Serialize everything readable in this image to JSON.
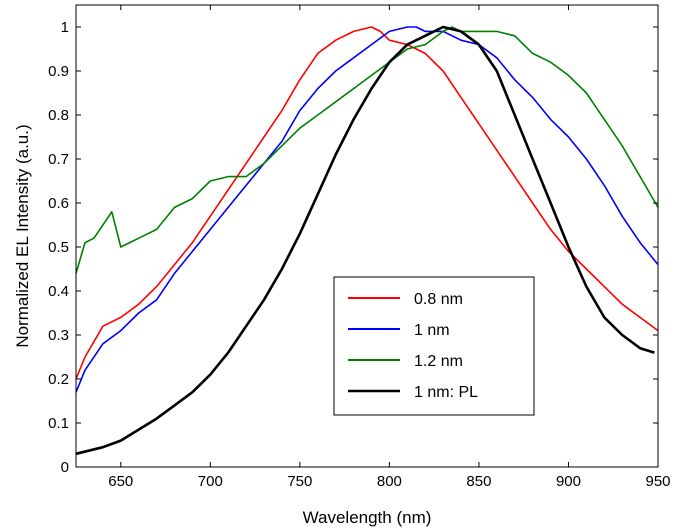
{
  "chart_data": {
    "type": "line",
    "title": "",
    "xlabel": "Wavelength (nm)",
    "ylabel": "Normalized EL Intensity (a.u.)",
    "xlim": [
      625,
      950
    ],
    "ylim": [
      0,
      1.05
    ],
    "xticks": [
      "650",
      "700",
      "750",
      "800",
      "850",
      "900",
      "950"
    ],
    "yticks": [
      "0",
      "0.1",
      "0.2",
      "0.3",
      "0.4",
      "0.5",
      "0.6",
      "0.7",
      "0.8",
      "0.9",
      "1"
    ],
    "grid": false,
    "legend_position": "lower-right",
    "series": [
      {
        "name": "0.8 nm",
        "color": "#ff0000",
        "x": [
          625,
          630,
          640,
          650,
          660,
          670,
          680,
          690,
          700,
          710,
          720,
          730,
          740,
          750,
          760,
          770,
          780,
          790,
          795,
          800,
          810,
          820,
          830,
          840,
          850,
          860,
          870,
          880,
          890,
          900,
          910,
          920,
          930,
          940,
          950
        ],
        "y": [
          0.2,
          0.25,
          0.32,
          0.34,
          0.37,
          0.41,
          0.46,
          0.51,
          0.57,
          0.63,
          0.69,
          0.75,
          0.81,
          0.88,
          0.94,
          0.97,
          0.99,
          1.0,
          0.99,
          0.97,
          0.96,
          0.94,
          0.9,
          0.84,
          0.78,
          0.72,
          0.66,
          0.6,
          0.54,
          0.49,
          0.45,
          0.41,
          0.37,
          0.34,
          0.31
        ]
      },
      {
        "name": "1 nm",
        "color": "#0000ff",
        "x": [
          625,
          630,
          640,
          650,
          660,
          670,
          680,
          690,
          700,
          710,
          720,
          730,
          740,
          750,
          760,
          770,
          780,
          790,
          800,
          810,
          815,
          820,
          830,
          840,
          850,
          860,
          870,
          880,
          890,
          900,
          910,
          920,
          930,
          940,
          950
        ],
        "y": [
          0.17,
          0.22,
          0.28,
          0.31,
          0.35,
          0.38,
          0.44,
          0.49,
          0.54,
          0.59,
          0.64,
          0.69,
          0.74,
          0.81,
          0.86,
          0.9,
          0.93,
          0.96,
          0.99,
          1.0,
          1.0,
          0.99,
          0.99,
          0.97,
          0.96,
          0.93,
          0.88,
          0.84,
          0.79,
          0.75,
          0.7,
          0.64,
          0.57,
          0.51,
          0.46
        ]
      },
      {
        "name": "1.2 nm",
        "color": "#008000",
        "x": [
          625,
          630,
          635,
          640,
          645,
          650,
          655,
          660,
          665,
          670,
          680,
          690,
          700,
          710,
          720,
          730,
          740,
          750,
          760,
          770,
          780,
          790,
          800,
          810,
          820,
          830,
          835,
          840,
          850,
          860,
          870,
          880,
          890,
          900,
          910,
          920,
          930,
          940,
          950
        ],
        "y": [
          0.44,
          0.51,
          0.52,
          0.55,
          0.58,
          0.5,
          0.51,
          0.52,
          0.53,
          0.54,
          0.59,
          0.61,
          0.65,
          0.66,
          0.66,
          0.69,
          0.73,
          0.77,
          0.8,
          0.83,
          0.86,
          0.89,
          0.92,
          0.95,
          0.96,
          0.99,
          1.0,
          0.99,
          0.99,
          0.99,
          0.98,
          0.94,
          0.92,
          0.89,
          0.85,
          0.79,
          0.73,
          0.66,
          0.59
        ]
      },
      {
        "name": "1 nm: PL",
        "color": "#000000",
        "x": [
          625,
          640,
          650,
          660,
          670,
          680,
          690,
          700,
          710,
          720,
          730,
          740,
          750,
          760,
          770,
          780,
          790,
          800,
          810,
          820,
          830,
          840,
          850,
          860,
          870,
          880,
          890,
          900,
          910,
          920,
          930,
          940,
          948
        ],
        "y": [
          0.03,
          0.045,
          0.06,
          0.085,
          0.11,
          0.14,
          0.17,
          0.21,
          0.26,
          0.32,
          0.38,
          0.45,
          0.53,
          0.62,
          0.71,
          0.79,
          0.86,
          0.92,
          0.96,
          0.98,
          1.0,
          0.99,
          0.96,
          0.9,
          0.8,
          0.7,
          0.6,
          0.5,
          0.41,
          0.34,
          0.3,
          0.27,
          0.26
        ]
      }
    ]
  }
}
